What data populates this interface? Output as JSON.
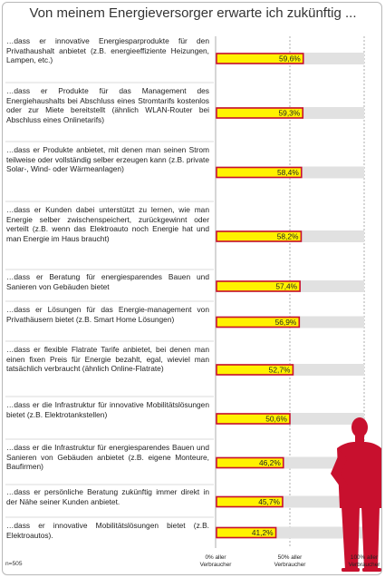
{
  "title": "Von meinem Energieversorger erwarte ich zukünftig ...",
  "note": "n=505",
  "colors": {
    "bar_fill": "#fff200",
    "bar_border": "#c8102e",
    "track": "#e1e1e1",
    "person": "#c8102e"
  },
  "icon": "person-icon",
  "chart_data": {
    "type": "bar",
    "orientation": "horizontal",
    "title": "Von meinem Energieversorger erwarte ich zukünftig ...",
    "xlim": [
      0,
      100
    ],
    "unit": "%",
    "grid": true,
    "ticks": [
      {
        "value": 0,
        "label_line1": "0% aller",
        "label_line2": "Verbraucher"
      },
      {
        "value": 50,
        "label_line1": "50% aller",
        "label_line2": "Verbraucher"
      },
      {
        "value": 100,
        "label_line1": "100% aller",
        "label_line2": "Verbraucher"
      }
    ],
    "categories": [
      "…dass er innovative Energiesparprodukte für den Privathaushalt anbietet (z.B. energieeffiziente Heizungen, Lampen, etc.)",
      "…dass er Produkte für das Management des Energiehaushalts bei Abschluss eines Stromtarifs kostenlos oder zur Miete bereitstellt (ähnlich WLAN-Router bei Abschluss eines Onlinetarifs)",
      "…dass er Produkte anbietet, mit denen man seinen Strom teilweise oder vollständig selber erzeugen kann (z.B. private Solar-, Wind- oder Wärmeanlagen)",
      "…dass er Kunden dabei unterstützt zu lernen, wie man Energie selber zwischenspeichert, zurückgewinnt oder verteilt (z.B. wenn das Elektroauto noch Energie hat und man Energie im Haus braucht)",
      "…dass er Beratung für energiesparendes Bauen und Sanieren von Gebäuden bietet",
      "…dass er Lösungen für das Energie-management von Privathäusern bietet (z.B. Smart Home Lösungen)",
      "…dass er flexible Flatrate Tarife anbietet, bei denen man einen fixen Preis für Energie bezahlt, egal, wieviel man tatsächlich verbraucht (ähnlich Online-Flatrate)",
      "…dass er die Infrastruktur für innovative Mobilitätslösungen bietet (z.B. Elektrotankstellen)",
      "…dass er die Infrastruktur für energiesparendes Bauen und Sanieren von Gebäuden anbietet (z.B. eigene Monteure, Baufirmen)",
      "…dass er persönliche Beratung zukünftig immer direkt in der Nähe seiner Kunden anbietet.",
      "…dass er innovative Mobilitätslösungen bietet (z.B. Elektroautos)."
    ],
    "values": [
      59.6,
      59.3,
      58.4,
      58.2,
      57.4,
      56.9,
      52.7,
      50.6,
      46.2,
      45.7,
      41.2
    ],
    "value_labels": [
      "59,6%",
      "59,3%",
      "58,4%",
      "58,2%",
      "57,4%",
      "56,9%",
      "52,7%",
      "50,6%",
      "46,2%",
      "45,7%",
      "41,2%"
    ]
  }
}
